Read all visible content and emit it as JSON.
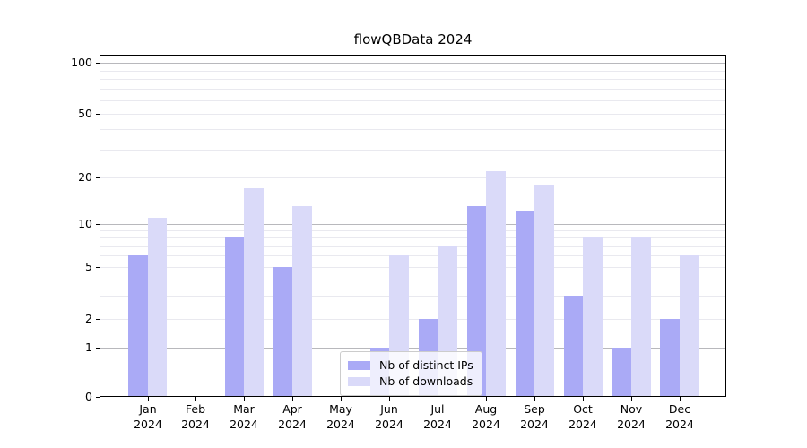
{
  "chart_data": {
    "type": "bar",
    "title": "flowQBData 2024",
    "categories": [
      "Jan",
      "Feb",
      "Mar",
      "Apr",
      "May",
      "Jun",
      "Jul",
      "Aug",
      "Sep",
      "Oct",
      "Nov",
      "Dec"
    ],
    "year_label": "2024",
    "series": [
      {
        "name": "Nb of distinct IPs",
        "color": "#aaaaf6",
        "values": [
          6,
          0,
          8,
          5,
          0,
          1,
          2,
          13,
          12,
          3,
          1,
          2
        ]
      },
      {
        "name": "Nb of downloads",
        "color": "#dadaf9",
        "values": [
          11,
          0,
          17,
          13,
          0,
          6,
          7,
          22,
          18,
          8,
          8,
          6
        ]
      }
    ],
    "y_axis": {
      "scale": "symlog",
      "ticks": [
        0,
        1,
        2,
        5,
        10,
        20,
        50,
        100
      ],
      "minor_gridlines": [
        2,
        3,
        4,
        5,
        6,
        7,
        8,
        9,
        20,
        30,
        40,
        50,
        60,
        70,
        80,
        90
      ],
      "major_gridlines": [
        1,
        10,
        100
      ],
      "range": [
        0,
        110
      ]
    },
    "grid": true,
    "legend_position": "lower center",
    "colors": {
      "bar_dark": "#aaaaf6",
      "bar_light": "#dadaf9",
      "grid_minor": "#e9e9ef",
      "grid_major": "#b8b8bc",
      "axis": "#000000"
    }
  }
}
